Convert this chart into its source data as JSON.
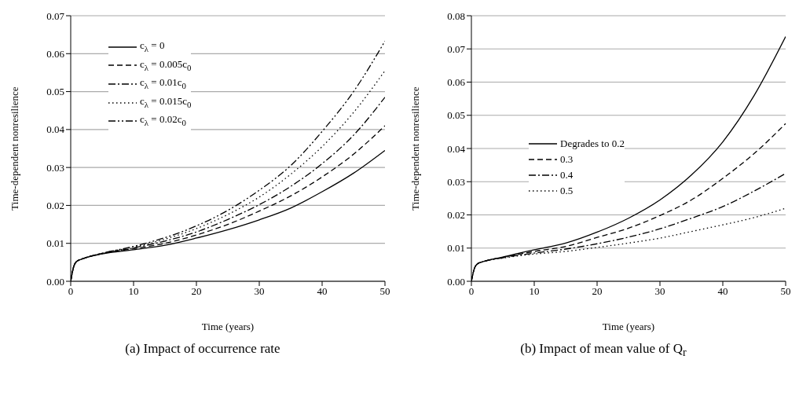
{
  "chart_data": [
    {
      "type": "line",
      "title": "(a)  Impact of occurrence rate",
      "xlabel": "Time (years)",
      "ylabel": "Time-dependent nonresilience",
      "x": [
        0,
        0.5,
        1,
        2,
        5,
        10,
        15,
        20,
        25,
        30,
        35,
        40,
        45,
        50
      ],
      "xlim": [
        0,
        50
      ],
      "xticks": [
        0,
        10,
        20,
        30,
        40,
        50
      ],
      "ylim": [
        0,
        0.07
      ],
      "yticks": [
        {
          "value": 0,
          "label": "0.00"
        },
        {
          "value": 0.01,
          "label": "0.01"
        },
        {
          "value": 0.02,
          "label": "0.02"
        },
        {
          "value": 0.03,
          "label": "0.03"
        },
        {
          "value": 0.04,
          "label": "0.04"
        },
        {
          "value": 0.05,
          "label": "0.05"
        },
        {
          "value": 0.06,
          "label": "0.06"
        },
        {
          "value": 0.07,
          "label": "0.07"
        }
      ],
      "grid": "y",
      "legend": "top left",
      "marker": "none",
      "series": [
        {
          "name": "c$_{λ}$ = 0",
          "color": "#000000",
          "line_style": "solid",
          "values": [
            0,
            0.004,
            0.0053,
            0.006,
            0.0072,
            0.0083,
            0.0095,
            0.0114,
            0.0136,
            0.0162,
            0.0193,
            0.0236,
            0.0285,
            0.0345
          ]
        },
        {
          "name": "c$_{λ}$ = 0.005c$_{0}$",
          "color": "#000000",
          "line_style": "dashed",
          "values": [
            0,
            0.004,
            0.0053,
            0.006,
            0.0073,
            0.0086,
            0.01,
            0.0122,
            0.015,
            0.0185,
            0.0225,
            0.0275,
            0.0335,
            0.041
          ]
        },
        {
          "name": "c$_{λ}$ = 0.01c$_{0}$",
          "color": "#000000",
          "line_style": "dashdot",
          "values": [
            0,
            0.004,
            0.0053,
            0.006,
            0.0073,
            0.0088,
            0.0106,
            0.013,
            0.0163,
            0.0202,
            0.025,
            0.031,
            0.0385,
            0.0485
          ]
        },
        {
          "name": "c$_{λ}$ = 0.015c$_{0}$",
          "color": "#000000",
          "line_style": "dotted",
          "values": [
            0,
            0.004,
            0.0053,
            0.006,
            0.0074,
            0.009,
            0.0111,
            0.0139,
            0.0176,
            0.0222,
            0.0282,
            0.0355,
            0.0445,
            0.0555
          ]
        },
        {
          "name": "c$_{λ}$ = 0.02c$_{0}$",
          "color": "#000000",
          "line_style": "dashdotdot",
          "values": [
            0,
            0.004,
            0.0053,
            0.006,
            0.0074,
            0.0092,
            0.0115,
            0.0146,
            0.0187,
            0.024,
            0.0305,
            0.0395,
            0.05,
            0.0633
          ]
        }
      ]
    },
    {
      "type": "line",
      "title": "(b)  Impact of mean value of Q$_{r}$",
      "xlabel": "Time (years)",
      "ylabel": "Time-dependent nonresilience",
      "x": [
        0,
        0.5,
        1,
        2,
        5,
        10,
        15,
        20,
        25,
        30,
        35,
        40,
        45,
        50
      ],
      "xlim": [
        0,
        50
      ],
      "xticks": [
        0,
        10,
        20,
        30,
        40,
        50
      ],
      "ylim": [
        0,
        0.08
      ],
      "yticks": [
        {
          "value": 0,
          "label": "0.00"
        },
        {
          "value": 0.01,
          "label": "0.01"
        },
        {
          "value": 0.02,
          "label": "0.02"
        },
        {
          "value": 0.03,
          "label": "0.03"
        },
        {
          "value": 0.04,
          "label": "0.04"
        },
        {
          "value": 0.05,
          "label": "0.05"
        },
        {
          "value": 0.06,
          "label": "0.06"
        },
        {
          "value": 0.07,
          "label": "0.07"
        },
        {
          "value": 0.08,
          "label": "0.08"
        }
      ],
      "grid": "y",
      "legend": "left",
      "marker": "none",
      "series": [
        {
          "name": "Degrades to 0.2",
          "color": "#000000",
          "line_style": "solid",
          "values": [
            0,
            0.004,
            0.0053,
            0.006,
            0.0073,
            0.0095,
            0.0115,
            0.0148,
            0.019,
            0.0245,
            0.032,
            0.042,
            0.056,
            0.0737
          ]
        },
        {
          "name": "0.3",
          "color": "#000000",
          "line_style": "dashed",
          "values": [
            0,
            0.004,
            0.0053,
            0.006,
            0.0072,
            0.009,
            0.0105,
            0.0132,
            0.016,
            0.0198,
            0.0245,
            0.031,
            0.0385,
            0.0475
          ]
        },
        {
          "name": "0.4",
          "color": "#000000",
          "line_style": "dashdot",
          "values": [
            0,
            0.004,
            0.0053,
            0.006,
            0.0071,
            0.0085,
            0.0097,
            0.0113,
            0.0133,
            0.0158,
            0.019,
            0.0225,
            0.0272,
            0.0325
          ]
        },
        {
          "name": "0.5",
          "color": "#000000",
          "line_style": "dotted",
          "values": [
            0,
            0.004,
            0.0053,
            0.006,
            0.007,
            0.0082,
            0.009,
            0.0102,
            0.0115,
            0.013,
            0.015,
            0.017,
            0.0192,
            0.022
          ]
        }
      ]
    }
  ]
}
